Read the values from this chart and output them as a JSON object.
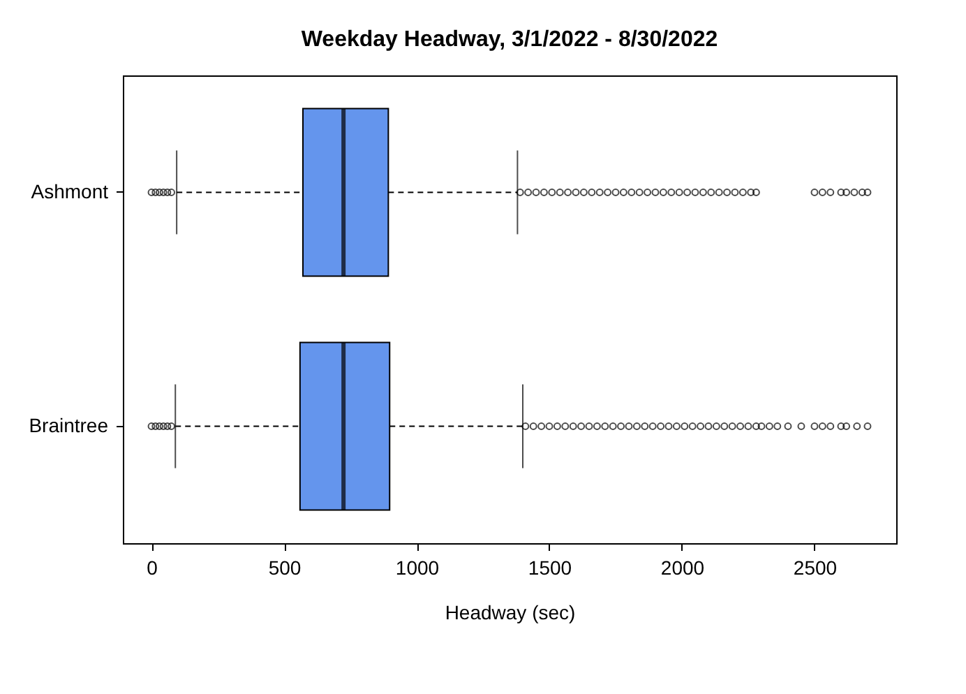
{
  "chart_data": {
    "type": "box",
    "orientation": "horizontal",
    "title": "Weekday Headway, 3/1/2022 - 8/30/2022",
    "xlabel": "Headway (sec)",
    "categories": [
      "Ashmont",
      "Braintree"
    ],
    "color": "#6495ed",
    "boxes": [
      {
        "low": 95,
        "q1": 571,
        "median": 724,
        "q3": 893,
        "high": 1380,
        "outliers": [
          0,
          15,
          30,
          45,
          60,
          75,
          1390,
          1420,
          1450,
          1480,
          1510,
          1540,
          1570,
          1600,
          1630,
          1660,
          1690,
          1720,
          1750,
          1780,
          1810,
          1840,
          1870,
          1900,
          1930,
          1960,
          1990,
          2020,
          2050,
          2080,
          2110,
          2140,
          2170,
          2200,
          2230,
          2260,
          2280,
          2500,
          2530,
          2560,
          2600,
          2620,
          2650,
          2680,
          2700
        ]
      },
      {
        "low": 90,
        "q1": 560,
        "median": 724,
        "q3": 898,
        "high": 1400,
        "outliers": [
          0,
          15,
          30,
          45,
          60,
          75,
          1410,
          1440,
          1470,
          1500,
          1530,
          1560,
          1590,
          1620,
          1650,
          1680,
          1710,
          1740,
          1770,
          1800,
          1830,
          1860,
          1890,
          1920,
          1950,
          1980,
          2010,
          2040,
          2070,
          2100,
          2130,
          2160,
          2190,
          2220,
          2250,
          2280,
          2300,
          2330,
          2360,
          2400,
          2450,
          2500,
          2530,
          2560,
          2600,
          2620,
          2660,
          2700
        ]
      }
    ],
    "xlim": [
      -108,
      2808
    ],
    "xticks": [
      0,
      500,
      1000,
      1500,
      2000,
      2500
    ],
    "grid": false
  }
}
